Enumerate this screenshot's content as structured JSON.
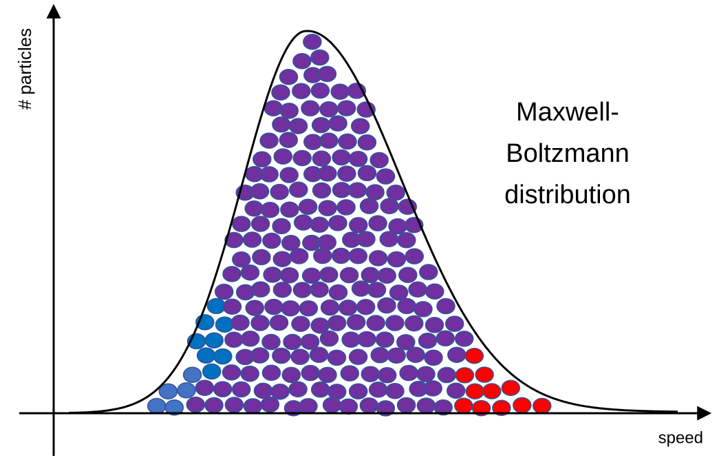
{
  "axes": {
    "y_label": "# particles",
    "x_label": "speed"
  },
  "annotation": {
    "lines": [
      "Maxwell-",
      "Boltzmann",
      "distribution"
    ]
  }
}
